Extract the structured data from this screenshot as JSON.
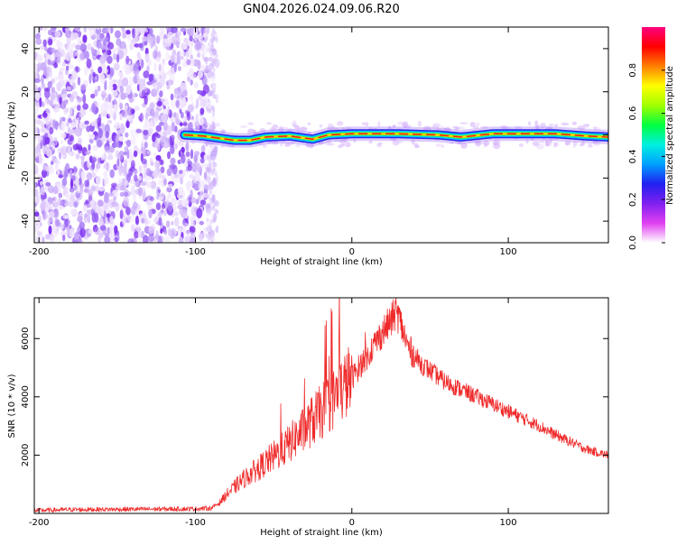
{
  "title": "GN04.2026.024.09.06.R20",
  "colors": {
    "snr_line": "#ef2a2a",
    "noise_purple": "#7a2cf0",
    "noise_light": "#d9c2fb"
  },
  "chart_data": [
    {
      "type": "heatmap",
      "id": "spectrogram",
      "xlabel": "Height of straight line (km)",
      "ylabel": "Frequency (Hz)",
      "xlim": [
        -203,
        164
      ],
      "ylim": [
        -50,
        50
      ],
      "xticks": [
        -200,
        -100,
        0,
        100
      ],
      "yticks": [
        -40,
        -20,
        0,
        20,
        40
      ],
      "noise_region_x": [
        -203,
        -93
      ],
      "signal_onset_x": -107,
      "signal_frequency_track": [
        {
          "x": -107,
          "y": 0
        },
        {
          "x": -95,
          "y": -0.5
        },
        {
          "x": -85,
          "y": -1.5
        },
        {
          "x": -75,
          "y": -2.5
        },
        {
          "x": -65,
          "y": -2.5
        },
        {
          "x": -55,
          "y": -1
        },
        {
          "x": -40,
          "y": -0.5
        },
        {
          "x": -25,
          "y": -2
        },
        {
          "x": -15,
          "y": 0
        },
        {
          "x": 0,
          "y": 0.5
        },
        {
          "x": 30,
          "y": 0.5
        },
        {
          "x": 55,
          "y": 0
        },
        {
          "x": 70,
          "y": -1
        },
        {
          "x": 90,
          "y": 0.5
        },
        {
          "x": 130,
          "y": 0.5
        },
        {
          "x": 150,
          "y": -0.5
        },
        {
          "x": 164,
          "y": -1
        }
      ],
      "colorbar": {
        "label": "Normalized spectral amplitude",
        "range": [
          0,
          1
        ],
        "ticks": [
          0.0,
          0.2,
          0.4,
          0.6,
          0.8
        ],
        "tick_labels": [
          "0.0",
          "0.2",
          "0.4",
          "0.6",
          "0.8"
        ],
        "colormap": [
          "#ffffff",
          "#e040f0",
          "#8020f0",
          "#2020f0",
          "#00a0ff",
          "#00f0e0",
          "#00ff40",
          "#a0ff00",
          "#ffff00",
          "#ff8000",
          "#ff0000",
          "#ff0080"
        ]
      }
    },
    {
      "type": "line",
      "id": "snr",
      "xlabel": "Height of straight line (km)",
      "ylabel": "SNR (10 * v/v)",
      "xlim": [
        -203,
        164
      ],
      "ylim": [
        0,
        7400
      ],
      "xticks": [
        -200,
        -100,
        0,
        100
      ],
      "yticks": [
        2000,
        4000,
        6000
      ],
      "series": [
        {
          "name": "SNR",
          "x": [
            -203,
            -180,
            -150,
            -120,
            -100,
            -90,
            -85,
            -80,
            -75,
            -70,
            -65,
            -60,
            -55,
            -50,
            -45,
            -40,
            -35,
            -30,
            -25,
            -20,
            -15,
            -10,
            -5,
            0,
            5,
            10,
            15,
            20,
            25,
            28,
            30,
            33,
            36,
            40,
            45,
            50,
            55,
            60,
            70,
            80,
            90,
            100,
            110,
            120,
            130,
            140,
            150,
            160,
            164
          ],
          "y": [
            100,
            130,
            140,
            150,
            160,
            180,
            350,
            650,
            900,
            1150,
            1350,
            1550,
            1750,
            1950,
            2150,
            2400,
            2650,
            2900,
            3200,
            3450,
            3750,
            4050,
            4350,
            4650,
            5050,
            5450,
            5850,
            6250,
            6600,
            6900,
            6750,
            6200,
            5700,
            5400,
            5100,
            4900,
            4700,
            4500,
            4250,
            4000,
            3750,
            3500,
            3250,
            3000,
            2700,
            2450,
            2200,
            2050,
            2000
          ]
        }
      ]
    }
  ]
}
